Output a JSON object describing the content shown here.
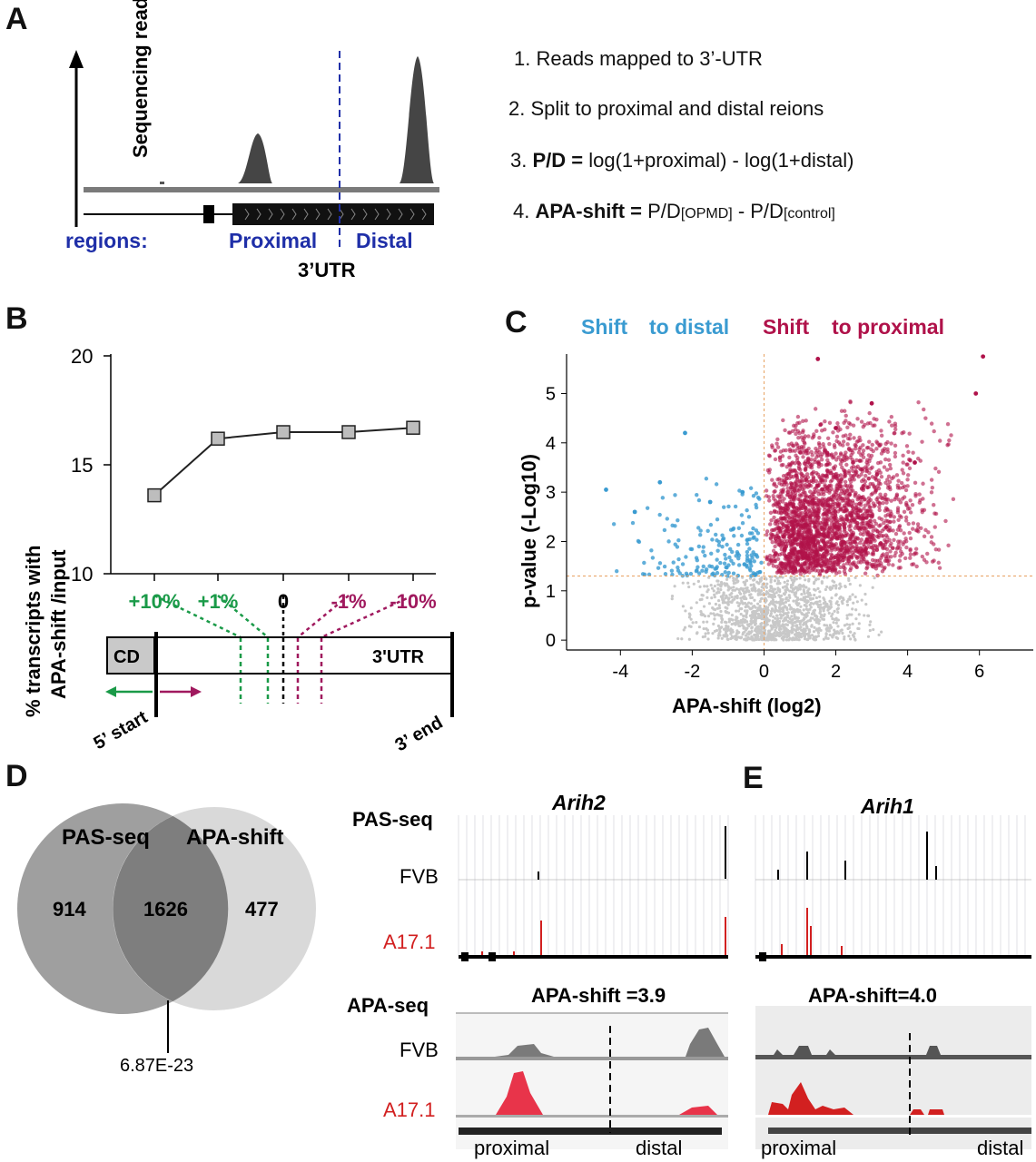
{
  "panels": {
    "A": "A",
    "B": "B",
    "C": "C",
    "D": "D",
    "E": "E"
  },
  "panelA": {
    "y_axis_label": "Sequencing reads",
    "regions_label": "regions:",
    "proximal_label": "Proximal",
    "distal_label": "Distal",
    "utr_label": "3’UTR",
    "steps": {
      "s1": "1. Reads mapped to 3’-UTR",
      "s2": "2. Split to proximal and distal reions",
      "s3_num": "3. ",
      "s3_bold": "P/D =",
      "s3_rest": " log(1+proximal) - log(1+distal)",
      "s4_num": "4. ",
      "s4_bold": "APA-shift =",
      "s4_pd1": " P/D",
      "s4_sub1": "[OPMD]",
      "s4_mid": " - P/D",
      "s4_sub2": "[control]"
    }
  },
  "panelB": {
    "ylabel_line1": "% transcripts with",
    "ylabel_line2": "APA-shift /input",
    "yticks": [
      "20",
      "15",
      "10"
    ],
    "xcats": [
      "+10%",
      "+1%",
      "0",
      "-1%",
      "-10%"
    ],
    "cd_label": "CD",
    "utr_label": "3'UTR",
    "start_label": "5’ start",
    "end_label": "3’ end",
    "colors": {
      "green": "#1a9a48",
      "magenta": "#a0195e"
    }
  },
  "panelC": {
    "title_left1": "Shift",
    "title_left2": "to distal",
    "title_right1": "Shift",
    "title_right2": "to proximal",
    "xlabel": "APA-shift (log2)",
    "ylabel": "p-value (-Log10)",
    "xticks": [
      "-4",
      "-2",
      "0",
      "2",
      "4",
      "6"
    ],
    "yticks": [
      "5",
      "4",
      "3",
      "2",
      "1",
      "0"
    ],
    "colors": {
      "distal": "#3a9bd1",
      "proximal": "#b0124a",
      "ns": "#c8c8c8",
      "threshold": "#e8a060"
    }
  },
  "panelD": {
    "left_label": "PAS-seq",
    "right_label": "APA-shift",
    "left_only": "914",
    "overlap": "1626",
    "right_only": "477",
    "pvalue": "6.87E-23"
  },
  "panelE": {
    "gene1": "Arih2",
    "gene2": "Arih1",
    "pas_label": "PAS-seq",
    "apa_label": "APA-seq",
    "fvb1": "FVB",
    "a171": "A17.1",
    "fvb2": "FVB",
    "a172": "A17.1",
    "shift1": "APA-shift =3.9",
    "shift2": "APA-shift=4.0",
    "proximal1": "proximal",
    "distal1": "distal",
    "proximal2": "proximal",
    "distal2": "distal"
  },
  "chart_data": [
    {
      "type": "line",
      "panel": "B",
      "categories": [
        "+10%",
        "+1%",
        "0",
        "-1%",
        "-10%"
      ],
      "values": [
        13.6,
        16.2,
        16.5,
        16.5,
        16.7
      ],
      "ylabel": "% transcripts with APA-shift /input",
      "ylim": [
        10,
        20
      ]
    },
    {
      "type": "scatter",
      "panel": "C",
      "xlabel": "APA-shift (log2)",
      "ylabel": "p-value (-Log10)",
      "xlim": [
        -5.5,
        7.5
      ],
      "ylim": [
        -0.2,
        5.8
      ],
      "series": [
        {
          "name": "Shift to distal",
          "points": [
            [
              -4.4,
              3.05
            ],
            [
              -3.6,
              2.6
            ],
            [
              -2.9,
              3.2
            ],
            [
              -2.2,
              4.2
            ],
            [
              -1.5,
              2.8
            ],
            [
              -0.6,
              3.0
            ]
          ]
        },
        {
          "name": "Shift to proximal",
          "points": [
            [
              1.5,
              5.7
            ],
            [
              3.0,
              4.8
            ],
            [
              6.1,
              5.75
            ],
            [
              5.9,
              5.0
            ],
            [
              4.2,
              3.6
            ],
            [
              2.0,
              4.3
            ]
          ]
        }
      ]
    }
  ]
}
